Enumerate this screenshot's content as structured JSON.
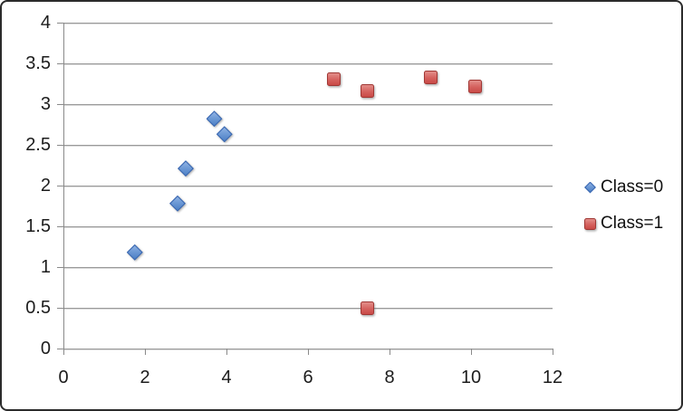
{
  "chart_data": {
    "type": "scatter",
    "title": "",
    "xlabel": "",
    "ylabel": "",
    "xlim": [
      0,
      12
    ],
    "ylim": [
      0,
      4
    ],
    "x_ticks": [
      0,
      2,
      4,
      6,
      8,
      10,
      12
    ],
    "y_ticks": [
      0,
      0.5,
      1,
      1.5,
      2,
      2.5,
      3,
      3.5,
      4
    ],
    "grid": "horizontal-only",
    "legend_position": "right-middle",
    "series": [
      {
        "name": "Class=0",
        "marker": "diamond",
        "color": "#4F81BD",
        "points": [
          [
            1.75,
            1.18
          ],
          [
            2.8,
            1.78
          ],
          [
            3.0,
            2.21
          ],
          [
            3.7,
            2.82
          ],
          [
            3.95,
            2.63
          ]
        ]
      },
      {
        "name": "Class=1",
        "marker": "square",
        "color": "#C0504D",
        "points": [
          [
            6.63,
            3.31
          ],
          [
            7.45,
            3.16
          ],
          [
            9.0,
            3.33
          ],
          [
            10.1,
            3.22
          ],
          [
            7.45,
            0.49
          ]
        ]
      }
    ]
  },
  "legend": {
    "items": [
      {
        "label": "Class=0"
      },
      {
        "label": "Class=1"
      }
    ]
  },
  "colors": {
    "blue_fill": "#4F81BD",
    "blue_border": "#3A68B2",
    "red_fill": "#C0504D",
    "red_border": "#A03734",
    "gridline": "#9A9A9A",
    "axis": "#8A8A8A",
    "text": "#1C1C1C",
    "frame_border": "#2B2B2B",
    "background": "#FFFFFF"
  }
}
